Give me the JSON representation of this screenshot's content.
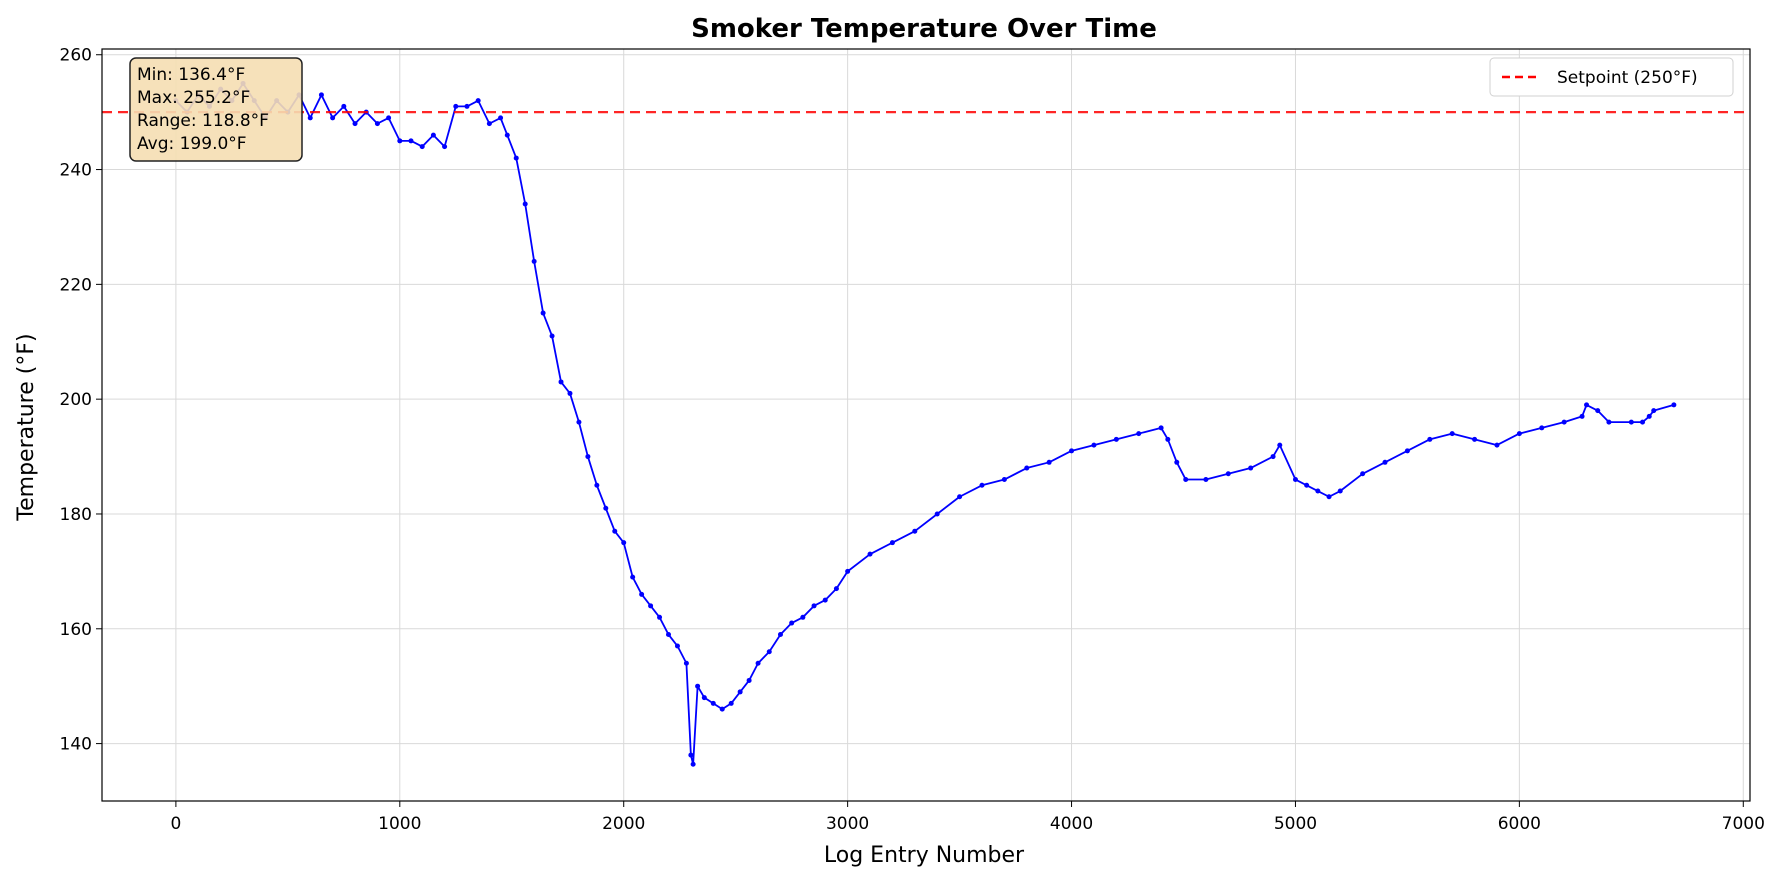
{
  "chart_data": {
    "type": "line",
    "title": "Smoker Temperature Over Time",
    "xlabel": "Log Entry Number",
    "ylabel": "Temperature (°F)",
    "xlim": [
      -330,
      7030
    ],
    "ylim": [
      130,
      261
    ],
    "x_ticks": [
      0,
      1000,
      2000,
      3000,
      4000,
      5000,
      6000,
      7000
    ],
    "x_tick_labels": [
      "0",
      "1000",
      "2000",
      "3000",
      "4000",
      "5000",
      "6000",
      "7000"
    ],
    "y_ticks": [
      140,
      160,
      180,
      200,
      220,
      240,
      260
    ],
    "y_tick_labels": [
      "140",
      "160",
      "180",
      "200",
      "220",
      "240",
      "260"
    ],
    "grid": true,
    "legend_position": "top-right",
    "stats_box": {
      "lines": [
        "Min: 136.4°F",
        "Max: 255.2°F",
        "Range: 118.8°F",
        "Avg: 199.0°F"
      ],
      "background": "#f5deb3",
      "border": "#222222"
    },
    "series": [
      {
        "name": "",
        "color": "#0000ff",
        "marker": "circle",
        "x": [
          0,
          50,
          100,
          150,
          200,
          250,
          300,
          350,
          400,
          450,
          500,
          550,
          600,
          650,
          700,
          750,
          800,
          850,
          900,
          950,
          1000,
          1050,
          1100,
          1150,
          1200,
          1250,
          1300,
          1350,
          1400,
          1450,
          1480,
          1520,
          1560,
          1600,
          1640,
          1680,
          1720,
          1760,
          1800,
          1840,
          1880,
          1920,
          1960,
          2000,
          2040,
          2080,
          2120,
          2160,
          2200,
          2240,
          2280,
          2300,
          2310,
          2330,
          2360,
          2400,
          2440,
          2480,
          2520,
          2560,
          2600,
          2650,
          2700,
          2750,
          2800,
          2850,
          2900,
          2950,
          3000,
          3100,
          3200,
          3300,
          3400,
          3500,
          3600,
          3700,
          3800,
          3900,
          4000,
          4100,
          4200,
          4300,
          4400,
          4430,
          4470,
          4510,
          4600,
          4700,
          4800,
          4900,
          4930,
          5000,
          5050,
          5100,
          5150,
          5200,
          5300,
          5400,
          5500,
          5600,
          5700,
          5800,
          5900,
          6000,
          6100,
          6200,
          6280,
          6300,
          6350,
          6400,
          6500,
          6550,
          6580,
          6600,
          6690
        ],
        "y": [
          252,
          250,
          253,
          251,
          254,
          252,
          255,
          252,
          249,
          252,
          250,
          253,
          249,
          253,
          249,
          251,
          248,
          250,
          248,
          249,
          245,
          245,
          244,
          246,
          244,
          251,
          251,
          252,
          248,
          249,
          246,
          242,
          234,
          224,
          215,
          211,
          203,
          201,
          196,
          190,
          185,
          181,
          177,
          175,
          169,
          166,
          164,
          162,
          159,
          157,
          154,
          138,
          136.4,
          150,
          148,
          147,
          146,
          147,
          149,
          151,
          154,
          156,
          159,
          161,
          162,
          164,
          165,
          167,
          170,
          173,
          175,
          177,
          180,
          183,
          185,
          186,
          188,
          189,
          191,
          192,
          193,
          194,
          195,
          193,
          189,
          186,
          186,
          187,
          188,
          190,
          192,
          186,
          185,
          184,
          183,
          184,
          187,
          189,
          191,
          193,
          194,
          193,
          192,
          194,
          195,
          196,
          197,
          199,
          198,
          196,
          196,
          196,
          197,
          198,
          199
        ]
      },
      {
        "name": "Setpoint (250°F)",
        "type": "hline",
        "y": 250,
        "color": "#ff0000",
        "style": "dashed"
      }
    ]
  }
}
